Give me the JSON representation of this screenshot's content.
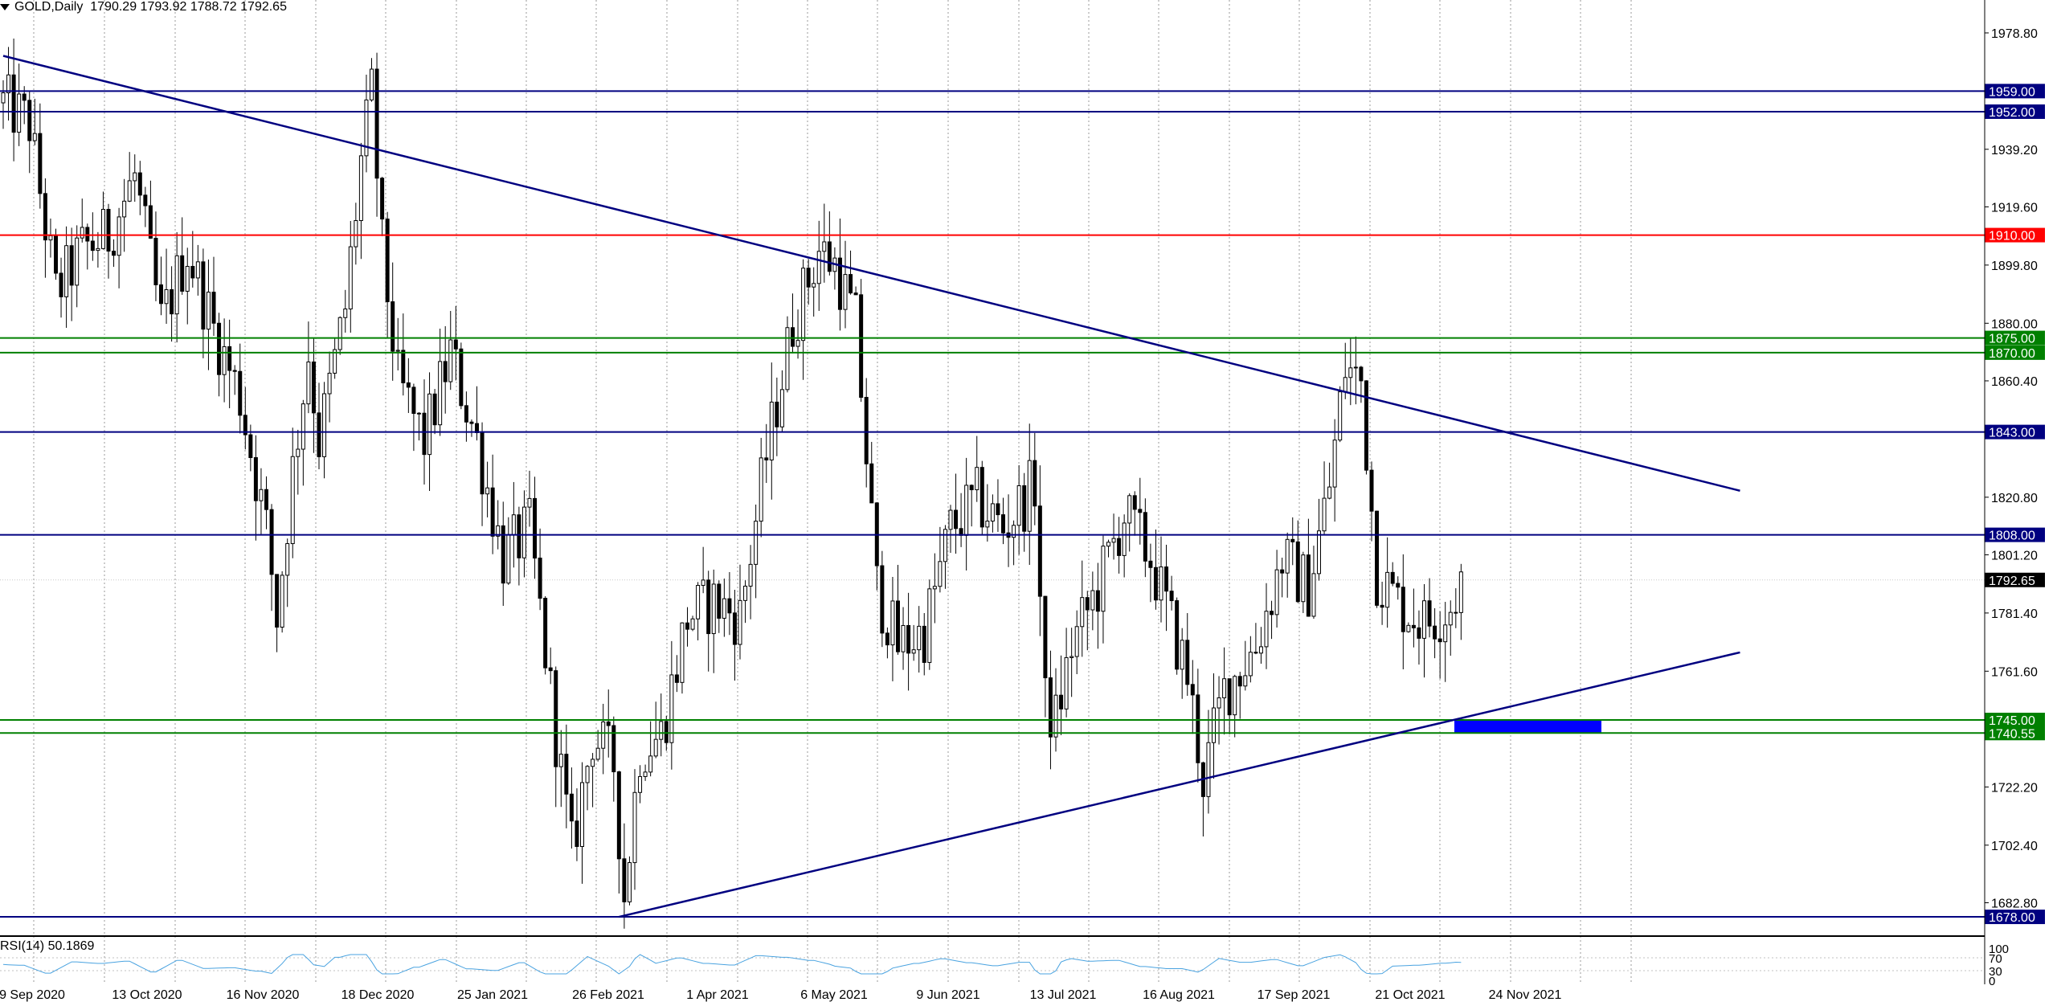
{
  "header": {
    "symbol": "GOLD,Daily",
    "open": "1790.29",
    "high": "1793.92",
    "low": "1788.72",
    "close": "1792.65"
  },
  "rsi": {
    "label": "RSI(14) 50.1869",
    "axis_labels": [
      "100",
      "70",
      "30",
      "0"
    ]
  },
  "chart_data": {
    "type": "candlestick",
    "symbol": "GOLD",
    "timeframe": "Daily",
    "ylim": [
      1672,
      1990
    ],
    "y_ticks": [
      "1978.80",
      "1939.20",
      "1919.60",
      "1899.80",
      "1880.00",
      "1860.40",
      "1820.80",
      "1801.20",
      "1781.40",
      "1761.60",
      "1722.20",
      "1702.40",
      "1682.80"
    ],
    "x_tick_labels": [
      "9 Sep 2020",
      "13 Oct 2020",
      "16 Nov 2020",
      "18 Dec 2020",
      "25 Jan 2021",
      "26 Feb 2021",
      "1 Apr 2021",
      "6 May 2021",
      "9 Jun 2021",
      "13 Jul 2021",
      "16 Aug 2021",
      "17 Sep 2021",
      "21 Oct 2021",
      "24 Nov 2021"
    ],
    "current_price": "1792.65",
    "horizontal_levels": [
      {
        "label": "1959.00",
        "value": 1959.0,
        "color": "#000080"
      },
      {
        "label": "1952.00",
        "value": 1952.0,
        "color": "#000080"
      },
      {
        "label": "1910.00",
        "value": 1910.0,
        "color": "#ff0000"
      },
      {
        "label": "1875.00",
        "value": 1875.0,
        "color": "#008000"
      },
      {
        "label": "1870.00",
        "value": 1870.0,
        "color": "#008000"
      },
      {
        "label": "1843.00",
        "value": 1843.0,
        "color": "#000080"
      },
      {
        "label": "1808.00",
        "value": 1808.0,
        "color": "#000080"
      },
      {
        "label": "1745.00",
        "value": 1745.0,
        "color": "#008000"
      },
      {
        "label": "1740.55",
        "value": 1740.55,
        "color": "#008000"
      },
      {
        "label": "1678.00",
        "value": 1678.0,
        "color": "#000080"
      }
    ],
    "trendlines": [
      {
        "name": "descending resistance",
        "from": {
          "bar": 0,
          "price": 1971
        },
        "to": {
          "bar": 330,
          "price": 1823
        },
        "color": "#000080"
      },
      {
        "name": "ascending support",
        "from": {
          "bar": 117,
          "price": 1678
        },
        "to": {
          "bar": 330,
          "price": 1768
        },
        "color": "#000080"
      }
    ],
    "support_zone": {
      "from_date": "Nov 2021",
      "to_date": "Dec 2021",
      "low": 1740.55,
      "high": 1745.0,
      "color": "#0000ff"
    },
    "price_path_keypoints": [
      [
        0,
        1955
      ],
      [
        5,
        1948
      ],
      [
        10,
        1890
      ],
      [
        15,
        1905
      ],
      [
        20,
        1910
      ],
      [
        25,
        1930
      ],
      [
        30,
        1880
      ],
      [
        35,
        1905
      ],
      [
        40,
        1878
      ],
      [
        45,
        1855
      ],
      [
        50,
        1810
      ],
      [
        52,
        1780
      ],
      [
        55,
        1830
      ],
      [
        58,
        1870
      ],
      [
        60,
        1840
      ],
      [
        65,
        1885
      ],
      [
        68,
        1935
      ],
      [
        70,
        1958
      ],
      [
        72,
        1905
      ],
      [
        75,
        1860
      ],
      [
        80,
        1840
      ],
      [
        85,
        1870
      ],
      [
        90,
        1840
      ],
      [
        95,
        1800
      ],
      [
        100,
        1810
      ],
      [
        105,
        1740
      ],
      [
        108,
        1700
      ],
      [
        112,
        1740
      ],
      [
        116,
        1730
      ],
      [
        118,
        1685
      ],
      [
        121,
        1735
      ],
      [
        125,
        1740
      ],
      [
        130,
        1780
      ],
      [
        135,
        1785
      ],
      [
        140,
        1780
      ],
      [
        145,
        1835
      ],
      [
        150,
        1880
      ],
      [
        155,
        1905
      ],
      [
        158,
        1900
      ],
      [
        162,
        1880
      ],
      [
        166,
        1790
      ],
      [
        170,
        1770
      ],
      [
        175,
        1775
      ],
      [
        180,
        1810
      ],
      [
        185,
        1820
      ],
      [
        190,
        1810
      ],
      [
        196,
        1825
      ],
      [
        198,
        1750
      ],
      [
        200,
        1745
      ],
      [
        203,
        1770
      ],
      [
        208,
        1790
      ],
      [
        213,
        1815
      ],
      [
        218,
        1800
      ],
      [
        225,
        1760
      ],
      [
        228,
        1725
      ],
      [
        232,
        1755
      ],
      [
        238,
        1770
      ],
      [
        243,
        1800
      ],
      [
        248,
        1790
      ],
      [
        252,
        1825
      ],
      [
        255,
        1865
      ],
      [
        258,
        1860
      ],
      [
        261,
        1795
      ],
      [
        265,
        1785
      ],
      [
        270,
        1778
      ],
      [
        275,
        1784
      ],
      [
        277,
        1792
      ]
    ]
  }
}
